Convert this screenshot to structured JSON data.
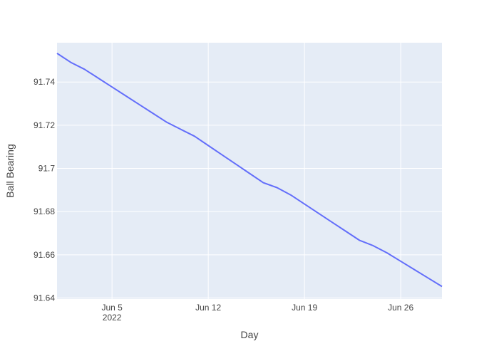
{
  "chart_data": {
    "type": "line",
    "title": "",
    "xlabel": "Day",
    "ylabel": "Ball Bearing",
    "x_type": "date",
    "xlim": [
      "2022-06-01",
      "2022-06-29"
    ],
    "ylim": [
      91.6395,
      91.7582
    ],
    "grid": true,
    "legend": "none",
    "colors": {
      "plot_bg": "#e5ecf6",
      "grid": "#ffffff",
      "line": "#636efa",
      "text": "#444444"
    },
    "x_ticks": [
      {
        "date": "2022-06-05",
        "label": "Jun 5",
        "sublabel": "2022"
      },
      {
        "date": "2022-06-12",
        "label": "Jun 12",
        "sublabel": ""
      },
      {
        "date": "2022-06-19",
        "label": "Jun 19",
        "sublabel": ""
      },
      {
        "date": "2022-06-26",
        "label": "Jun 26",
        "sublabel": ""
      }
    ],
    "y_ticks": [
      {
        "value": 91.64,
        "label": "91.64"
      },
      {
        "value": 91.66,
        "label": "91.66"
      },
      {
        "value": 91.68,
        "label": "91.68"
      },
      {
        "value": 91.7,
        "label": "91.7"
      },
      {
        "value": 91.72,
        "label": "91.72"
      },
      {
        "value": 91.74,
        "label": "91.74"
      }
    ],
    "series": [
      {
        "x": [
          "2022-06-01",
          "2022-06-02",
          "2022-06-03",
          "2022-06-04",
          "2022-06-05",
          "2022-06-06",
          "2022-06-07",
          "2022-06-08",
          "2022-06-09",
          "2022-06-10",
          "2022-06-11",
          "2022-06-12",
          "2022-06-13",
          "2022-06-14",
          "2022-06-15",
          "2022-06-16",
          "2022-06-17",
          "2022-06-18",
          "2022-06-19",
          "2022-06-20",
          "2022-06-21",
          "2022-06-22",
          "2022-06-23",
          "2022-06-24",
          "2022-06-25",
          "2022-06-26",
          "2022-06-27",
          "2022-06-28",
          "2022-06-29"
        ],
        "y": [
          91.7533,
          91.7491,
          91.7459,
          91.7418,
          91.7377,
          91.7336,
          91.7295,
          91.7254,
          91.7213,
          91.7181,
          91.7149,
          91.7106,
          91.7063,
          91.702,
          91.6977,
          91.6934,
          91.6911,
          91.6877,
          91.6835,
          91.6793,
          91.6751,
          91.6709,
          91.6667,
          91.6642,
          91.6609,
          91.657,
          91.6531,
          91.6492,
          91.6453
        ]
      }
    ]
  }
}
